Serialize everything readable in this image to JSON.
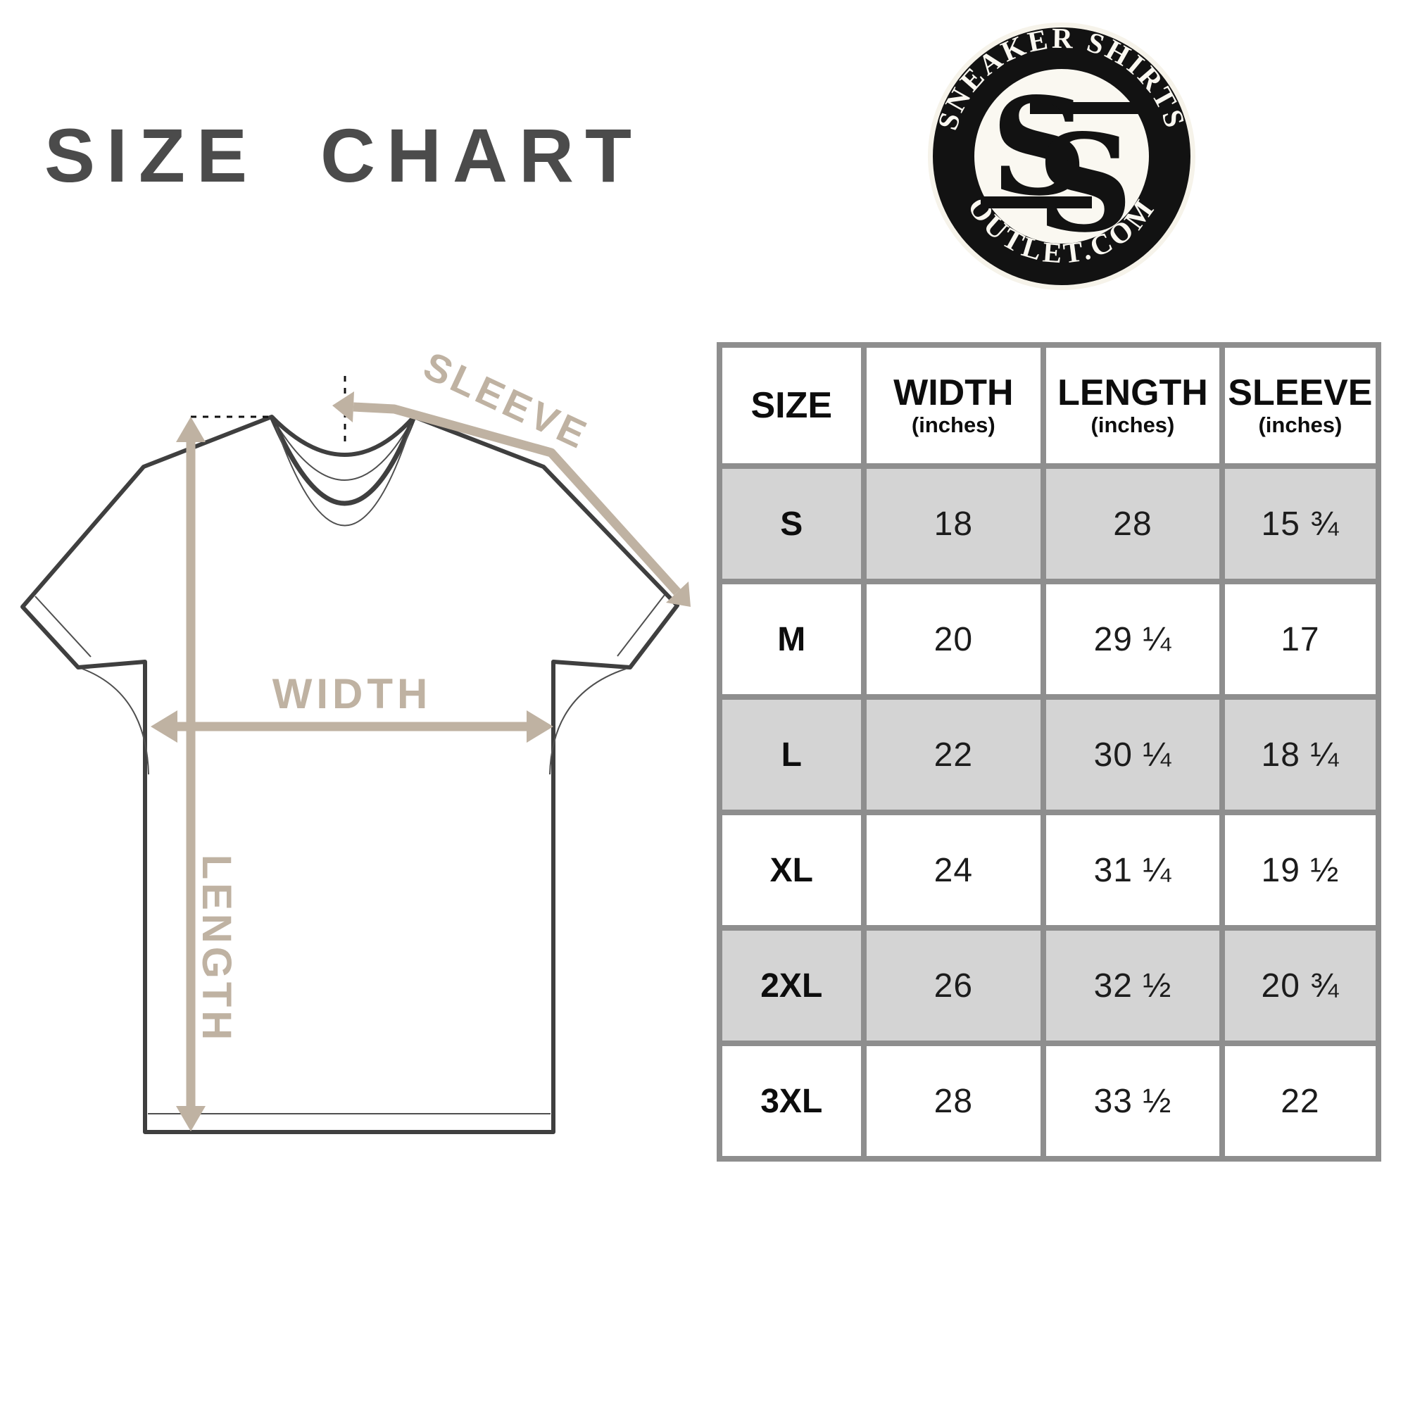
{
  "page": {
    "background": "#ffffff"
  },
  "title": "SIZE CHART",
  "logo": {
    "top_text": "SNEAKER SHIRTS",
    "bottom_text": "OUTLET.COM",
    "monogram": {
      "s1": "S",
      "s2": "S"
    },
    "ring_color": "#121212",
    "text_color": "#faf8f1"
  },
  "diagram": {
    "sleeve_label": "SLEEVE",
    "width_label": "WIDTH",
    "length_label": "LENGTH",
    "arrow_color": "#bfb2a2",
    "outline_color": "#3f3f3f"
  },
  "size_table": {
    "border_color": "#8e8e8e",
    "zebra_color": "#d4d4d4",
    "columns": [
      {
        "label": "SIZE",
        "sub": ""
      },
      {
        "label": "WIDTH",
        "sub": "(inches)"
      },
      {
        "label": "LENGTH",
        "sub": "(inches)"
      },
      {
        "label": "SLEEVE",
        "sub": "(inches)"
      }
    ],
    "rows": [
      {
        "size": "S",
        "width": "18",
        "length": "28",
        "sleeve": "15 ¾",
        "shaded": true
      },
      {
        "size": "M",
        "width": "20",
        "length": "29 ¼",
        "sleeve": "17",
        "shaded": false
      },
      {
        "size": "L",
        "width": "22",
        "length": "30 ¼",
        "sleeve": "18 ¼",
        "shaded": true
      },
      {
        "size": "XL",
        "width": "24",
        "length": "31 ¼",
        "sleeve": "19 ½",
        "shaded": false
      },
      {
        "size": "2XL",
        "width": "26",
        "length": "32 ½",
        "sleeve": "20 ¾",
        "shaded": true
      },
      {
        "size": "3XL",
        "width": "28",
        "length": "33 ½",
        "sleeve": "22",
        "shaded": false
      }
    ]
  },
  "chart_data": {
    "type": "table",
    "title": "SIZE CHART",
    "columns": [
      "SIZE",
      "WIDTH (inches)",
      "LENGTH (inches)",
      "SLEEVE (inches)"
    ],
    "rows": [
      [
        "S",
        "18",
        "28",
        "15 ¾"
      ],
      [
        "M",
        "20",
        "29 ¼",
        "17"
      ],
      [
        "L",
        "22",
        "30 ¼",
        "18 ¼"
      ],
      [
        "XL",
        "24",
        "31 ¼",
        "19 ½"
      ],
      [
        "2XL",
        "26",
        "32 ½",
        "20 ¾"
      ],
      [
        "3XL",
        "28",
        "33 ½",
        "22"
      ]
    ]
  }
}
